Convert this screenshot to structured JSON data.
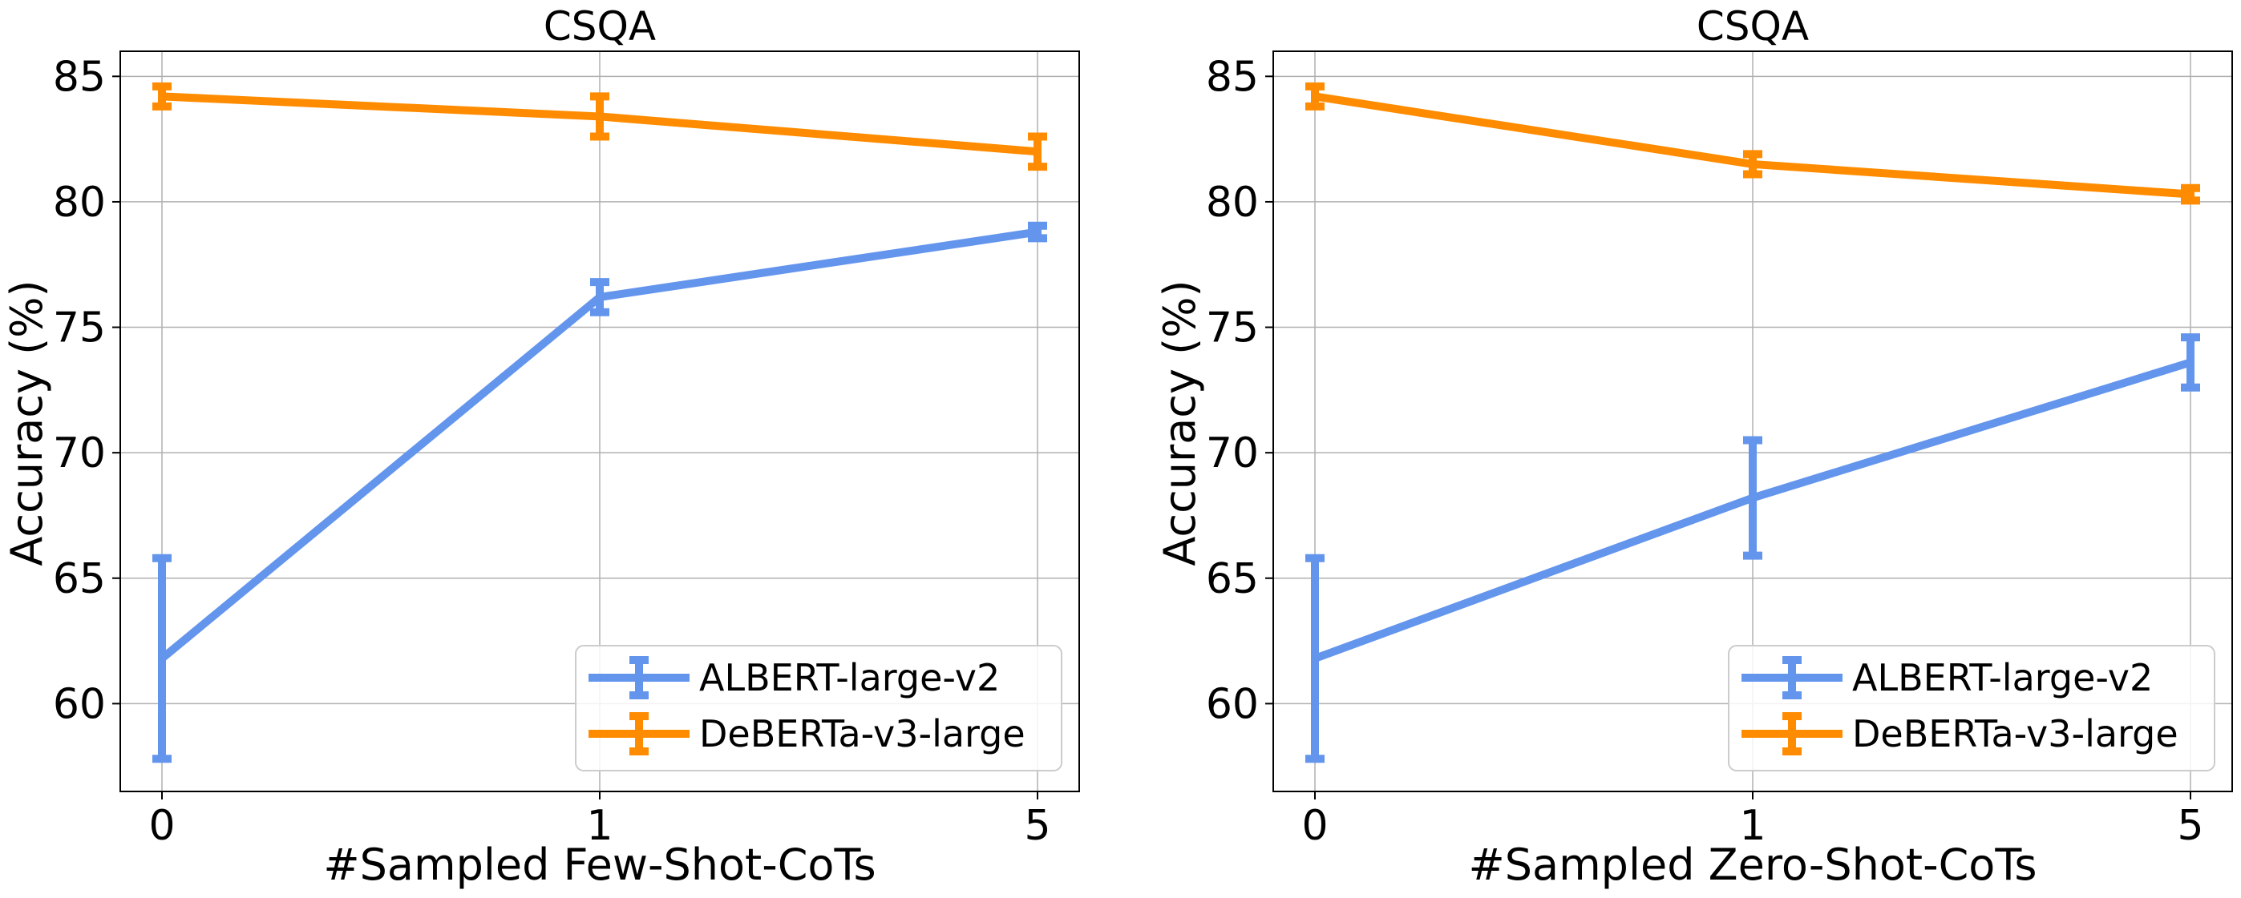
{
  "colors": {
    "albert": "#6495ED",
    "deberta": "#FF8C00"
  },
  "chart_data": [
    {
      "type": "line",
      "title": "CSQA",
      "xlabel": "#Sampled Few-Shot-CoTs",
      "ylabel": "Accuracy (%)",
      "categories": [
        "0",
        "1",
        "5"
      ],
      "ylim": [
        56.5,
        86
      ],
      "yticks": [
        "60",
        "65",
        "70",
        "75",
        "80",
        "85"
      ],
      "grid": true,
      "legend_position": "lower-right",
      "series": [
        {
          "name": "ALBERT-large-v2",
          "values": [
            61.8,
            76.2,
            78.8
          ],
          "err": [
            4.0,
            0.6,
            0.25
          ]
        },
        {
          "name": "DeBERTa-v3-large",
          "values": [
            84.2,
            83.4,
            82.0
          ],
          "err": [
            0.4,
            0.8,
            0.6
          ]
        }
      ]
    },
    {
      "type": "line",
      "title": "CSQA",
      "xlabel": "#Sampled Zero-Shot-CoTs",
      "ylabel": "Accuracy (%)",
      "categories": [
        "0",
        "1",
        "5"
      ],
      "ylim": [
        56.5,
        86
      ],
      "yticks": [
        "60",
        "65",
        "70",
        "75",
        "80",
        "85"
      ],
      "grid": true,
      "legend_position": "lower-right",
      "series": [
        {
          "name": "ALBERT-large-v2",
          "values": [
            61.8,
            68.2,
            73.6
          ],
          "err": [
            4.0,
            2.3,
            1.0
          ]
        },
        {
          "name": "DeBERTa-v3-large",
          "values": [
            84.2,
            81.5,
            80.3
          ],
          "err": [
            0.4,
            0.4,
            0.25
          ]
        }
      ]
    }
  ]
}
